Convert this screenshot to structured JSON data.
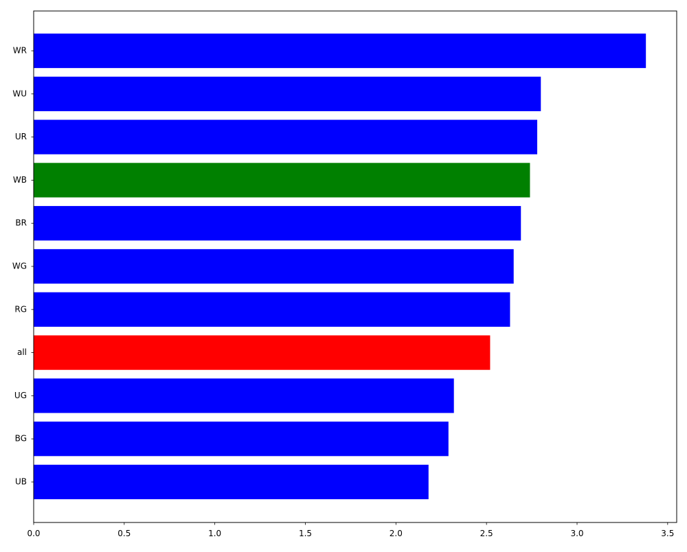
{
  "chart_data": {
    "type": "bar",
    "orientation": "horizontal",
    "title": "",
    "xlabel": "",
    "ylabel": "",
    "categories": [
      "UB",
      "BG",
      "UG",
      "all",
      "RG",
      "WG",
      "BR",
      "WB",
      "UR",
      "WU",
      "WR"
    ],
    "values": [
      2.18,
      2.29,
      2.32,
      2.52,
      2.63,
      2.65,
      2.69,
      2.74,
      2.78,
      2.8,
      3.38
    ],
    "bar_colors": [
      "#0000ff",
      "#0000ff",
      "#0000ff",
      "#ff0000",
      "#0000ff",
      "#0000ff",
      "#0000ff",
      "#008000",
      "#0000ff",
      "#0000ff",
      "#0000ff"
    ],
    "xlim": [
      0,
      3.55
    ],
    "xticks": [
      0.0,
      0.5,
      1.0,
      1.5,
      2.0,
      2.5,
      3.0,
      3.5
    ],
    "xtick_labels": [
      "0.0",
      "0.5",
      "1.0",
      "1.5",
      "2.0",
      "2.5",
      "3.0",
      "3.5"
    ],
    "grid": false,
    "legend": "none"
  }
}
